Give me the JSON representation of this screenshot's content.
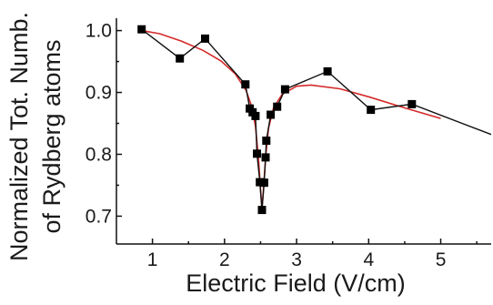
{
  "chart_data": {
    "type": "line",
    "xlabel": "Electric Field (V/cm)",
    "ylabel_line1": "Normalized Tot. Numb.",
    "ylabel_line2": "of Rydberg atoms",
    "xlim": [
      0.5,
      5.7
    ],
    "ylim": [
      0.655,
      1.02
    ],
    "x_ticks": [
      1,
      2,
      3,
      4,
      5
    ],
    "y_ticks": [
      0.7,
      0.8,
      0.9,
      1.0
    ],
    "x_tick_labels": [
      "1",
      "2",
      "3",
      "4",
      "5"
    ],
    "y_tick_labels": [
      "0.7",
      "0.8",
      "0.9",
      "1.0"
    ],
    "grid": false,
    "legend": "none",
    "colors": {
      "data": "#111111",
      "fit": "#d42a2a"
    },
    "series": [
      {
        "style": "line+square-markers",
        "points": [
          {
            "x": 0.85,
            "y": 1.002
          },
          {
            "x": 1.38,
            "y": 0.955
          },
          {
            "x": 1.73,
            "y": 0.987
          },
          {
            "x": 2.29,
            "y": 0.913
          },
          {
            "x": 2.35,
            "y": 0.874
          },
          {
            "x": 2.39,
            "y": 0.868
          },
          {
            "x": 2.43,
            "y": 0.862
          },
          {
            "x": 2.45,
            "y": 0.801
          },
          {
            "x": 2.49,
            "y": 0.755
          },
          {
            "x": 2.52,
            "y": 0.71
          },
          {
            "x": 2.55,
            "y": 0.754
          },
          {
            "x": 2.57,
            "y": 0.795
          },
          {
            "x": 2.58,
            "y": 0.822
          },
          {
            "x": 2.64,
            "y": 0.864
          },
          {
            "x": 2.73,
            "y": 0.877
          },
          {
            "x": 2.84,
            "y": 0.905
          },
          {
            "x": 3.43,
            "y": 0.934
          },
          {
            "x": 4.03,
            "y": 0.872
          },
          {
            "x": 4.6,
            "y": 0.881
          },
          {
            "x": 5.7,
            "y": 0.832,
            "marker": false
          }
        ]
      },
      {
        "style": "fit-curve",
        "points": [
          {
            "x": 0.85,
            "y": 1.0
          },
          {
            "x": 1.1,
            "y": 0.995
          },
          {
            "x": 1.4,
            "y": 0.983
          },
          {
            "x": 1.7,
            "y": 0.968
          },
          {
            "x": 1.95,
            "y": 0.951
          },
          {
            "x": 2.15,
            "y": 0.93
          },
          {
            "x": 2.3,
            "y": 0.903
          },
          {
            "x": 2.38,
            "y": 0.876
          },
          {
            "x": 2.43,
            "y": 0.845
          },
          {
            "x": 2.47,
            "y": 0.795
          },
          {
            "x": 2.5,
            "y": 0.742
          },
          {
            "x": 2.52,
            "y": 0.712
          },
          {
            "x": 2.54,
            "y": 0.742
          },
          {
            "x": 2.57,
            "y": 0.795
          },
          {
            "x": 2.61,
            "y": 0.842
          },
          {
            "x": 2.68,
            "y": 0.875
          },
          {
            "x": 2.8,
            "y": 0.897
          },
          {
            "x": 3.0,
            "y": 0.91
          },
          {
            "x": 3.2,
            "y": 0.912
          },
          {
            "x": 3.6,
            "y": 0.906
          },
          {
            "x": 4.0,
            "y": 0.893
          },
          {
            "x": 4.5,
            "y": 0.875
          },
          {
            "x": 5.0,
            "y": 0.858
          }
        ]
      }
    ]
  }
}
